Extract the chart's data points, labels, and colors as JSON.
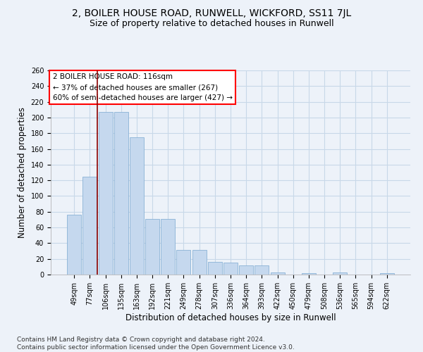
{
  "title1": "2, BOILER HOUSE ROAD, RUNWELL, WICKFORD, SS11 7JL",
  "title2": "Size of property relative to detached houses in Runwell",
  "xlabel": "Distribution of detached houses by size in Runwell",
  "ylabel": "Number of detached properties",
  "categories": [
    "49sqm",
    "77sqm",
    "106sqm",
    "135sqm",
    "163sqm",
    "192sqm",
    "221sqm",
    "249sqm",
    "278sqm",
    "307sqm",
    "336sqm",
    "364sqm",
    "393sqm",
    "422sqm",
    "450sqm",
    "479sqm",
    "508sqm",
    "536sqm",
    "565sqm",
    "594sqm",
    "622sqm"
  ],
  "values": [
    76,
    125,
    207,
    207,
    175,
    71,
    71,
    31,
    31,
    16,
    15,
    12,
    12,
    3,
    0,
    2,
    0,
    3,
    0,
    0,
    2
  ],
  "bar_color": "#c5d8ee",
  "bar_edge_color": "#7aa8d0",
  "grid_color": "#c8d8e8",
  "background_color": "#edf2f9",
  "annotation_box_text": "2 BOILER HOUSE ROAD: 116sqm\n← 37% of detached houses are smaller (267)\n60% of semi-detached houses are larger (427) →",
  "annotation_box_color": "white",
  "annotation_box_border": "red",
  "vline_x": 1.5,
  "vline_color": "#8b0000",
  "ylim": [
    0,
    260
  ],
  "yticks": [
    0,
    20,
    40,
    60,
    80,
    100,
    120,
    140,
    160,
    180,
    200,
    220,
    240,
    260
  ],
  "footnote": "Contains HM Land Registry data © Crown copyright and database right 2024.\nContains public sector information licensed under the Open Government Licence v3.0.",
  "title1_fontsize": 10,
  "title2_fontsize": 9,
  "xlabel_fontsize": 8.5,
  "ylabel_fontsize": 8.5,
  "tick_fontsize": 7,
  "annotation_fontsize": 7.5,
  "footnote_fontsize": 6.5
}
